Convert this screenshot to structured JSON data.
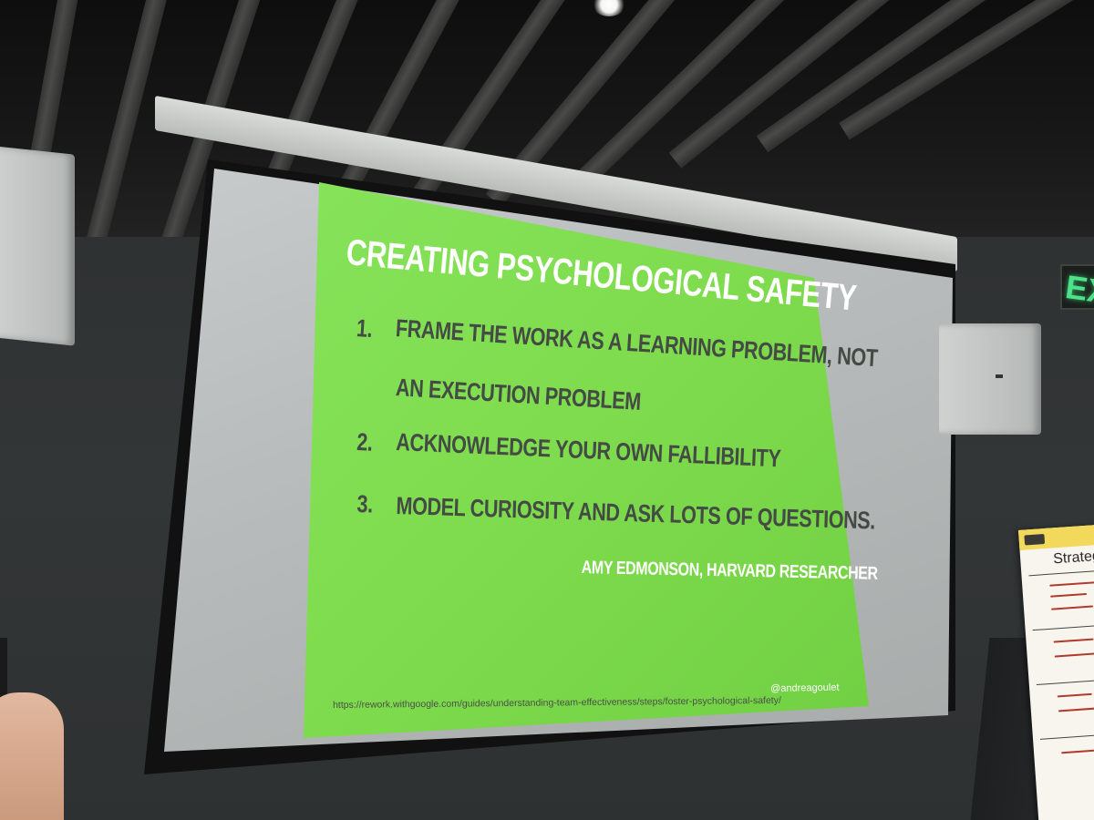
{
  "slide": {
    "title": "CREATING PSYCHOLOGICAL SAFETY",
    "items": [
      {
        "number": "1.",
        "text_line1": "FRAME THE WORK AS A LEARNING PROBLEM, NOT",
        "text_line2": "AN EXECUTION PROBLEM"
      },
      {
        "number": "2.",
        "text_line1": "ACKNOWLEDGE YOUR OWN FALLIBILITY"
      },
      {
        "number": "3.",
        "text_line1": "MODEL CURIOSITY AND ASK LOTS OF QUESTIONS."
      }
    ],
    "attribution": "AMY EDMONSON, HARVARD RESEARCHER",
    "source_url": "https://rework.withgoogle.com/guides/understanding-team-effectiveness/steps/foster-psychological-safety/",
    "handle": "@andreagoulet",
    "background_color": "#80dd50"
  },
  "room": {
    "exit_sign_text": "EX",
    "flipchart_title": "Strategis",
    "exit_sign_color": "#4fe08a"
  }
}
